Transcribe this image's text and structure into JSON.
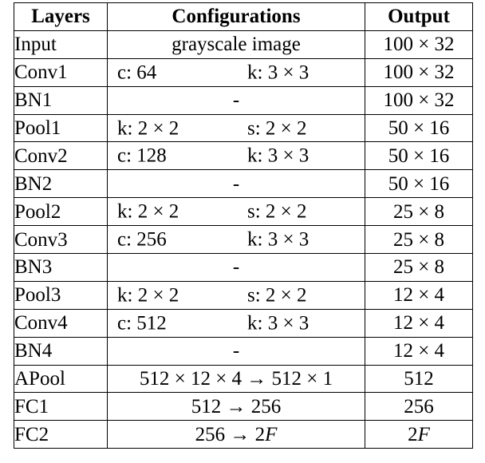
{
  "table": {
    "headers": [
      "Layers",
      "Configurations",
      "Output"
    ],
    "rows": [
      {
        "layer": "Input",
        "config": "grayscale image",
        "output": "100 × 32"
      },
      {
        "layer": "Conv1",
        "config_left": "c: 64",
        "config_right": "k: 3 × 3",
        "output": "100 × 32"
      },
      {
        "layer": "BN1",
        "config": "-",
        "output": "100 × 32"
      },
      {
        "layer": "Pool1",
        "config_left": "k: 2 × 2",
        "config_right": "s: 2 × 2",
        "output": "50 × 16"
      },
      {
        "layer": "Conv2",
        "config_left": "c: 128",
        "config_right": "k: 3 × 3",
        "output": "50 × 16"
      },
      {
        "layer": "BN2",
        "config": "-",
        "output": "50 × 16"
      },
      {
        "layer": "Pool2",
        "config_left": "k: 2 × 2",
        "config_right": "s: 2 × 2",
        "output": "25 × 8"
      },
      {
        "layer": "Conv3",
        "config_left": "c: 256",
        "config_right": "k: 3 × 3",
        "output": "25 × 8"
      },
      {
        "layer": "BN3",
        "config": "-",
        "output": "25 × 8"
      },
      {
        "layer": "Pool3",
        "config_left": "k: 2 × 2",
        "config_right": "s: 2 × 2",
        "output": "12 × 4"
      },
      {
        "layer": "Conv4",
        "config_left": "c: 512",
        "config_right": "k: 3 × 3",
        "output": "12 × 4"
      },
      {
        "layer": "BN4",
        "config": "-",
        "output": "12 × 4"
      },
      {
        "layer": "APool",
        "config": "512 × 12 × 4 → 512 × 1",
        "output": "512"
      },
      {
        "layer": "FC1",
        "config": "512 → 256",
        "output": "256"
      },
      {
        "layer": "FC2",
        "config_pre": "256 → 2",
        "config_var": "F",
        "output_pre": "2",
        "output_var": "F"
      }
    ]
  }
}
